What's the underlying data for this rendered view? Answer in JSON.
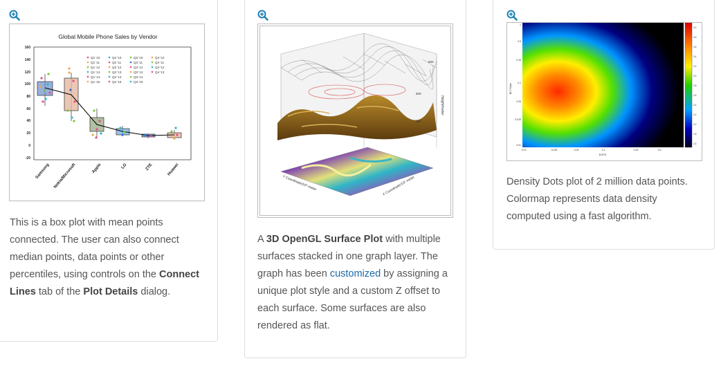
{
  "cards": [
    {
      "zoom_icon": "zoom-in-icon",
      "chart": {
        "title": "Global Mobile Phone Sales by Vendor",
        "y_ticks": [
          "160",
          "140",
          "120",
          "100",
          "80",
          "60",
          "40",
          "20",
          "0",
          "-20"
        ],
        "categories": [
          "Samsung",
          "Nokia/Microsoft",
          "Apple",
          "LG",
          "ZTE",
          "Huawei"
        ],
        "legend": [
          [
            "Q1 '10",
            "Q2 '10",
            "Q3 '10",
            "Q4 '10"
          ],
          [
            "Q1 '11",
            "Q2 '11",
            "Q3 '11",
            "Q4 '11"
          ],
          [
            "Q1 '12",
            "Q2 '12",
            "Q3 '12",
            "Q4 '12"
          ],
          [
            "Q1 '13",
            "Q2 '13",
            "Q3 '13",
            "Q4 '13"
          ],
          [
            "Q1 '14",
            "Q2 '14",
            "Q3 '14",
            ""
          ],
          [
            "Q1 '15",
            "Q2 '15",
            "Q3 '15",
            ""
          ]
        ]
      },
      "desc": {
        "t1": "This is a box plot with mean points connected. The user can also connect median points, data points or other percentiles, using controls on the ",
        "b1": "Connect Lines",
        "t2": " tab of the ",
        "b2": "Plot Details",
        "t3": " dialog."
      }
    },
    {
      "zoom_icon": "zoom-in-icon",
      "chart": {
        "z_ticks": [
          "800",
          "600",
          "400",
          "300"
        ],
        "z_label": "Height/meter",
        "x_label": "Y Coordinate/10⁵ meter",
        "y_label": "X Coordinate/10⁵ meter"
      },
      "desc": {
        "t1": "A ",
        "b1": "3D OpenGL Surface Plot",
        "t2": " with multiple surfaces stacked in one graph layer. The graph has been ",
        "link": "customized",
        "t3": " by assigning a unique plot style and a custom Z offset to each surface. Some surfaces are also rendered as flat."
      }
    },
    {
      "zoom_icon": "zoom-in-icon",
      "chart": {
        "x_label": "EGFR",
        "y_label": "BLT Ratio",
        "x_ticks": [
          "0.01",
          "0.025",
          "0.05",
          "0.1",
          "0.25",
          "0.5"
        ],
        "y_ticks": [
          "1",
          "0.5",
          "0.25",
          "0.1",
          "0.05",
          "0.025",
          "0.01"
        ],
        "colorbar_ticks": [
          "4.0",
          "3.8",
          "3.6",
          "3.4",
          "3.2",
          "3.0",
          "2.8",
          "2.6",
          "2.4",
          "2.2",
          "2.0",
          "1.8",
          "1.6"
        ]
      },
      "desc": {
        "text": "Density Dots plot of 2 million data points. Colormap represents data density computed using a fast algorithm."
      }
    }
  ]
}
